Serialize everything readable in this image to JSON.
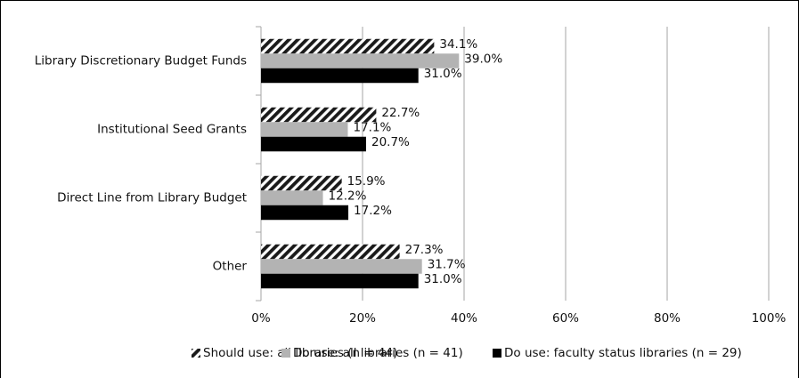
{
  "chart_data": {
    "type": "bar",
    "orientation": "horizontal",
    "categories": [
      "Library Discretionary Budget Funds",
      "Institutional Seed Grants",
      "Direct Line from Library Budget",
      "Other"
    ],
    "series": [
      {
        "name": "Should use: all libraries (n = 44)",
        "color": "#1a1a1a",
        "pattern": "hatch",
        "values": [
          34.1,
          22.7,
          15.9,
          27.3
        ],
        "value_labels": [
          "34.1%",
          "22.7%",
          "15.9%",
          "27.3%"
        ]
      },
      {
        "name": "Do use: all libraries (n = 41)",
        "color": "#b3b3b3",
        "values": [
          39.0,
          17.1,
          12.2,
          31.7
        ],
        "value_labels": [
          "39.0%",
          "17.1%",
          "12.2%",
          "31.7%"
        ]
      },
      {
        "name": "Do use: faculty status libraries (n = 29)",
        "color": "#000000",
        "values": [
          31.0,
          20.7,
          17.2,
          31.0
        ],
        "value_labels": [
          "31.0%",
          "20.7%",
          "17.2%",
          "31.0%"
        ]
      }
    ],
    "xlim": [
      0,
      100
    ],
    "xticks": [
      {
        "value": 0,
        "label": "0%"
      },
      {
        "value": 20,
        "label": "20%"
      },
      {
        "value": 40,
        "label": "40%"
      },
      {
        "value": 60,
        "label": "60%"
      },
      {
        "value": 80,
        "label": "80%"
      },
      {
        "value": 100,
        "label": "100%"
      }
    ],
    "grid": true,
    "legend": "bottom"
  }
}
